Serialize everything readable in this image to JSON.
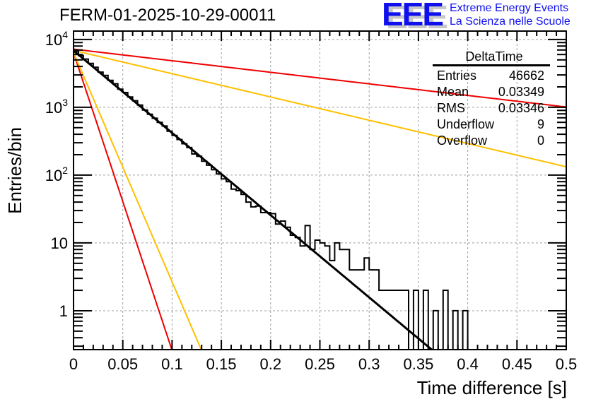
{
  "chart_data": {
    "type": "histogram",
    "title": "FERM-01-2025-10-29-00011",
    "xlabel": "Time difference [s]",
    "ylabel": "Entries/bin",
    "xlim": [
      0,
      0.5
    ],
    "ylim": [
      0.267,
      13300
    ],
    "yscale": "log",
    "grid": true,
    "bin_width": 0.005,
    "x_ticks": [
      {
        "value": 0,
        "label": "0"
      },
      {
        "value": 0.05,
        "label": "0.05"
      },
      {
        "value": 0.1,
        "label": "0.1"
      },
      {
        "value": 0.15,
        "label": "0.15"
      },
      {
        "value": 0.2,
        "label": "0.2"
      },
      {
        "value": 0.25,
        "label": "0.25"
      },
      {
        "value": 0.3,
        "label": "0.3"
      },
      {
        "value": 0.35,
        "label": "0.35"
      },
      {
        "value": 0.4,
        "label": "0.4"
      },
      {
        "value": 0.45,
        "label": "0.45"
      },
      {
        "value": 0.5,
        "label": "0.5"
      }
    ],
    "y_ticks": [
      {
        "value": 1,
        "label": "1",
        "sup": ""
      },
      {
        "value": 10,
        "label": "10",
        "sup": ""
      },
      {
        "value": 100,
        "label": "10",
        "sup": "2"
      },
      {
        "value": 1000,
        "label": "10",
        "sup": "3"
      },
      {
        "value": 10000,
        "label": "10",
        "sup": "4"
      }
    ],
    "histogram": {
      "name": "DeltaTime",
      "color": "#000000",
      "bin_edges_start": 0,
      "values": [
        6700,
        5800,
        5150,
        4450,
        3900,
        3300,
        2950,
        2500,
        2220,
        1850,
        1650,
        1420,
        1250,
        1080,
        910,
        790,
        690,
        600,
        530,
        445,
        385,
        335,
        290,
        255,
        205,
        190,
        160,
        140,
        120,
        104,
        88,
        80,
        62,
        59,
        52,
        40,
        34,
        35,
        28,
        28,
        27,
        19,
        21,
        17,
        13,
        12,
        9,
        18,
        8,
        11,
        10,
        9,
        5.5,
        10,
        8,
        8,
        4,
        4,
        4,
        6,
        4,
        4,
        2,
        2,
        2,
        2,
        2,
        2,
        0,
        2,
        0,
        2,
        0,
        1,
        0,
        2,
        0,
        1,
        0,
        1
      ]
    },
    "fits": [
      {
        "name": "fit",
        "color": "#000000",
        "amplitude": 6850,
        "tau": 0.0358,
        "xmin": 0,
        "xmax": 0.5
      },
      {
        "name": "red-steep",
        "color": "#ee0000",
        "amplitude": 6400,
        "tau": 0.00989,
        "xmin": 0,
        "xmax": 0.5
      },
      {
        "name": "yellow-steep",
        "color": "#ffc000",
        "amplitude": 6400,
        "tau": 0.01285,
        "xmin": 0,
        "xmax": 0.5
      },
      {
        "name": "yellow-shallow",
        "color": "#ffc000",
        "amplitude": 6900,
        "tau": 0.1265,
        "xmin": 0,
        "xmax": 0.5
      },
      {
        "name": "red-shallow",
        "color": "#ee0000",
        "amplitude": 7200,
        "tau": 0.2545,
        "xmin": 0,
        "xmax": 0.5
      }
    ]
  },
  "logo": {
    "mark": "EEE",
    "line1": "Extreme Energy Events",
    "line2": "La Scienza nelle Scuole"
  },
  "stats": {
    "title": "DeltaTime",
    "rows": [
      {
        "label": "Entries",
        "value": "46662"
      },
      {
        "label": "Mean",
        "value": "0.03349"
      },
      {
        "label": "RMS",
        "value": "0.03346"
      },
      {
        "label": "Underflow",
        "value": "9"
      },
      {
        "label": "Overflow",
        "value": "0"
      }
    ]
  }
}
